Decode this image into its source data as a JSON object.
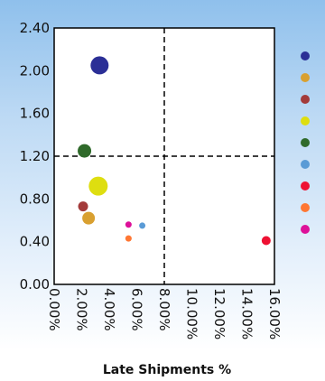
{
  "chart_data": {
    "type": "scatter",
    "title": "",
    "xlabel": "Late Shipments %",
    "ylabel": "",
    "xlim": [
      0,
      0.16
    ],
    "ylim": [
      0,
      2.4
    ],
    "x_ticks": [
      0,
      0.02,
      0.04,
      0.06,
      0.08,
      0.1,
      0.12,
      0.14,
      0.16
    ],
    "x_tick_labels": [
      "0.00%",
      "2.00%",
      "4.00%",
      "6.00%",
      "8.00%",
      "10.00%",
      "12.00%",
      "14.00%",
      "16.00%"
    ],
    "y_ticks": [
      0,
      0.4,
      0.8,
      1.2,
      1.6,
      2.0,
      2.4
    ],
    "y_tick_labels": [
      "0.00",
      "0.40",
      "0.80",
      "1.20",
      "1.60",
      "2.00",
      "2.40"
    ],
    "reference_lines": {
      "x": 0.08,
      "y": 1.2,
      "style": "dashed"
    },
    "grid": false,
    "legend": {
      "placement": "right",
      "markers": [
        "#2b2f96",
        "#d9a030",
        "#a33a3a",
        "#dede10",
        "#2f6a2a",
        "#5a9bd6",
        "#ee1133",
        "#ff7733",
        "#dd1199"
      ]
    },
    "points": [
      {
        "x": 0.033,
        "y": 2.05,
        "size": 10,
        "color": "#2b2f96"
      },
      {
        "x": 0.022,
        "y": 1.25,
        "size": 7.5,
        "color": "#2f6a2a"
      },
      {
        "x": 0.032,
        "y": 0.92,
        "size": 10.5,
        "color": "#dede10"
      },
      {
        "x": 0.021,
        "y": 0.73,
        "size": 5.5,
        "color": "#a33a3a"
      },
      {
        "x": 0.025,
        "y": 0.62,
        "size": 7,
        "color": "#d9a030"
      },
      {
        "x": 0.054,
        "y": 0.56,
        "size": 3.5,
        "color": "#dd1199"
      },
      {
        "x": 0.064,
        "y": 0.55,
        "size": 3.5,
        "color": "#5a9bd6"
      },
      {
        "x": 0.054,
        "y": 0.43,
        "size": 3.5,
        "color": "#ff7733"
      },
      {
        "x": 0.154,
        "y": 0.41,
        "size": 5,
        "color": "#ee1133"
      }
    ]
  }
}
